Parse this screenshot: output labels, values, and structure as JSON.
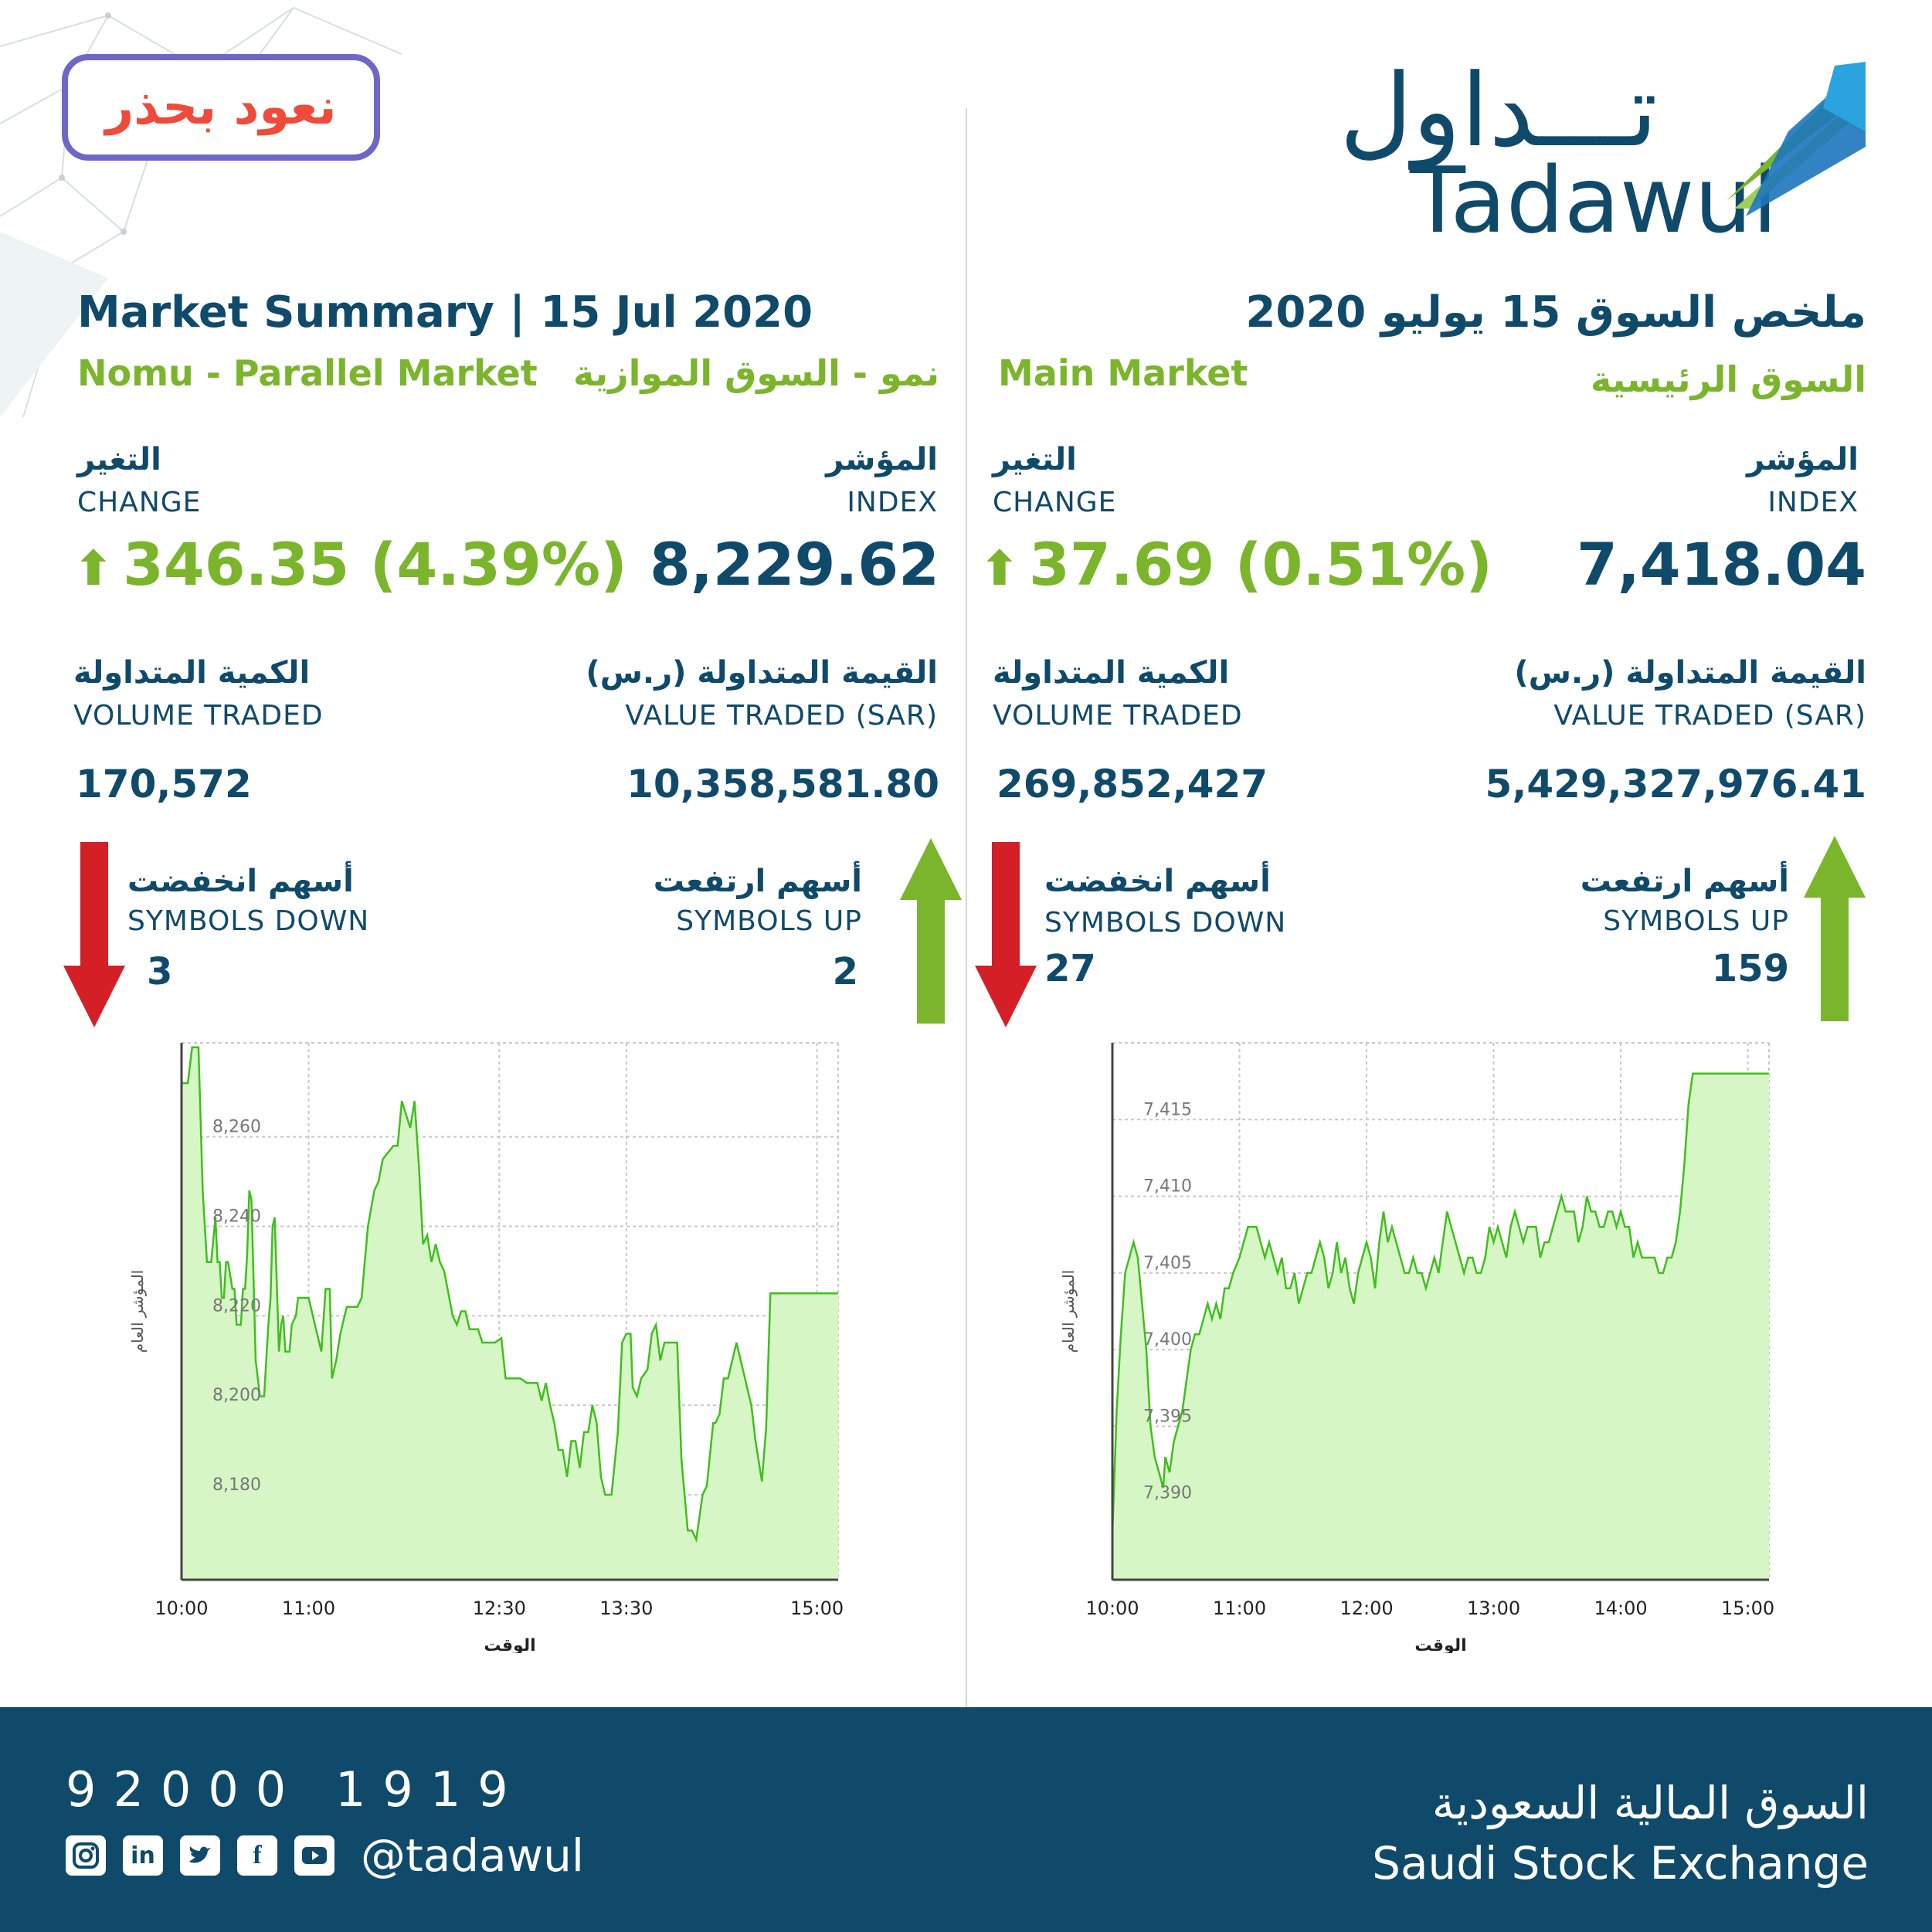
{
  "campaign": {
    "text": "نعود بحذر"
  },
  "logo": {
    "arabic": "تـــداول",
    "english": "Tadawul"
  },
  "headers": {
    "title_en": "Market Summary | 15 Jul 2020",
    "title_ar": "ملخص السوق 15 يوليو 2020"
  },
  "labels": {
    "index_ar": "المؤشر",
    "index_en": "INDEX",
    "change_ar": "التغير",
    "change_en": "CHANGE",
    "value_ar": "القيمة المتداولة (ر.س)",
    "value_en": "VALUE TRADED (SAR)",
    "volume_ar": "الكمية المتداولة",
    "volume_en": "VOLUME TRADED",
    "up_ar": "أسهم ارتفعت",
    "up_en": "SYMBOLS UP",
    "down_ar": "أسهم انخفضت",
    "down_en": "SYMBOLS DOWN"
  },
  "nomu": {
    "name_en": "Nomu - Parallel Market",
    "name_ar": "نمو - السوق الموازية",
    "index": "8,229.62",
    "change": "346.35 (4.39%)",
    "value_traded": "10,358,581.80",
    "volume_traded": "170,572",
    "symbols_up": "2",
    "symbols_down": "3"
  },
  "main": {
    "name_en": "Main Market",
    "name_ar": "السوق الرئيسية",
    "index": "7,418.04",
    "change": "37.69 (0.51%)",
    "value_traded": "5,429,327,976.41",
    "volume_traded": "269,852,427",
    "symbols_up": "159",
    "symbols_down": "27"
  },
  "footer": {
    "phone": "92000 1919",
    "handle": "@tadawul",
    "exchange_ar": "السوق المالية السعودية",
    "exchange_en": "Saudi Stock Exchange",
    "social_icons": [
      "instagram-icon",
      "linkedin-icon",
      "twitter-icon",
      "facebook-icon",
      "youtube-icon"
    ]
  },
  "colors": {
    "navy": "#0f4a6b",
    "green": "#7ab52c",
    "red": "#d41f26",
    "fill": "#d7f6c6",
    "line": "#3fbf1c"
  },
  "chart_data": [
    {
      "type": "area",
      "market": "nomu",
      "ylabel": "المؤشر العام",
      "xlabel": "الوقت",
      "x_ticks": [
        "10:00",
        "11:00",
        "12:30",
        "13:30",
        "15:00"
      ],
      "y_ticks": [
        "8,180",
        "8,200",
        "8,220",
        "8,240",
        "8,260"
      ],
      "x_range_minutes": [
        0,
        310
      ],
      "x_tick_minutes": [
        0,
        60,
        150,
        210,
        300
      ],
      "ylim": [
        8161,
        8281
      ],
      "y_tick_values": [
        8180,
        8200,
        8220,
        8240,
        8260
      ],
      "points": [
        [
          0,
          8272
        ],
        [
          3,
          8272
        ],
        [
          5,
          8280
        ],
        [
          8,
          8280
        ],
        [
          10,
          8248
        ],
        [
          12,
          8232
        ],
        [
          14,
          8232
        ],
        [
          16,
          8242
        ],
        [
          17,
          8232
        ],
        [
          18,
          8232
        ],
        [
          19,
          8224
        ],
        [
          20,
          8224
        ],
        [
          21,
          8232
        ],
        [
          22,
          8232
        ],
        [
          24,
          8226
        ],
        [
          25,
          8226
        ],
        [
          26,
          8218
        ],
        [
          28,
          8218
        ],
        [
          29,
          8226
        ],
        [
          30,
          8226
        ],
        [
          31,
          8234
        ],
        [
          32,
          8248
        ],
        [
          33,
          8246
        ],
        [
          35,
          8210
        ],
        [
          37,
          8202
        ],
        [
          38,
          8202
        ],
        [
          39,
          8202
        ],
        [
          41,
          8218
        ],
        [
          42,
          8224
        ],
        [
          43,
          8240
        ],
        [
          44,
          8242
        ],
        [
          46,
          8212
        ],
        [
          47,
          8218
        ],
        [
          48,
          8220
        ],
        [
          49,
          8212
        ],
        [
          51,
          8212
        ],
        [
          52,
          8218
        ],
        [
          54,
          8220
        ],
        [
          55,
          8224
        ],
        [
          60,
          8224
        ],
        [
          62,
          8220
        ],
        [
          64,
          8216
        ],
        [
          66,
          8212
        ],
        [
          68,
          8226
        ],
        [
          70,
          8226
        ],
        [
          71,
          8206
        ],
        [
          73,
          8210
        ],
        [
          75,
          8216
        ],
        [
          78,
          8222
        ],
        [
          83,
          8222
        ],
        [
          85,
          8224
        ],
        [
          88,
          8240
        ],
        [
          91,
          8248
        ],
        [
          93,
          8250
        ],
        [
          95,
          8255
        ],
        [
          100,
          8258
        ],
        [
          102,
          8258
        ],
        [
          104,
          8268
        ],
        [
          106,
          8265
        ],
        [
          108,
          8262
        ],
        [
          110,
          8268
        ],
        [
          112,
          8254
        ],
        [
          114,
          8236
        ],
        [
          116,
          8238
        ],
        [
          118,
          8232
        ],
        [
          120,
          8236
        ],
        [
          122,
          8232
        ],
        [
          124,
          8230
        ],
        [
          128,
          8220
        ],
        [
          130,
          8218
        ],
        [
          132,
          8221
        ],
        [
          134,
          8221
        ],
        [
          136,
          8217
        ],
        [
          140,
          8217
        ],
        [
          142,
          8214
        ],
        [
          144,
          8214
        ],
        [
          148,
          8214
        ],
        [
          151,
          8215
        ],
        [
          153,
          8206
        ],
        [
          160,
          8206
        ],
        [
          163,
          8205
        ],
        [
          168,
          8205
        ],
        [
          170,
          8201
        ],
        [
          172,
          8205
        ],
        [
          174,
          8200
        ],
        [
          176,
          8196
        ],
        [
          178,
          8190
        ],
        [
          180,
          8190
        ],
        [
          182,
          8184
        ],
        [
          184,
          8192
        ],
        [
          186,
          8192
        ],
        [
          188,
          8186
        ],
        [
          190,
          8194
        ],
        [
          192,
          8194
        ],
        [
          194,
          8200
        ],
        [
          196,
          8196
        ],
        [
          198,
          8184
        ],
        [
          200,
          8180
        ],
        [
          203,
          8180
        ],
        [
          206,
          8194
        ],
        [
          208,
          8214
        ],
        [
          210,
          8216
        ],
        [
          212,
          8216
        ],
        [
          213,
          8204
        ],
        [
          215,
          8202
        ],
        [
          217,
          8206
        ],
        [
          220,
          8208
        ],
        [
          222,
          8216
        ],
        [
          224,
          8218
        ],
        [
          226,
          8210
        ],
        [
          228,
          8214
        ],
        [
          230,
          8214
        ],
        [
          234,
          8214
        ],
        [
          236,
          8188
        ],
        [
          239,
          8172
        ],
        [
          241,
          8172
        ],
        [
          243,
          8170
        ],
        [
          246,
          8180
        ],
        [
          248,
          8182
        ],
        [
          251,
          8196
        ],
        [
          252,
          8196
        ],
        [
          254,
          8198
        ],
        [
          256,
          8206
        ],
        [
          258,
          8206
        ],
        [
          260,
          8210
        ],
        [
          262,
          8214
        ],
        [
          264,
          8210
        ],
        [
          267,
          8204
        ],
        [
          269,
          8200
        ],
        [
          271,
          8192
        ],
        [
          273,
          8186
        ],
        [
          274,
          8183
        ],
        [
          276,
          8195
        ],
        [
          278,
          8225
        ],
        [
          281,
          8225
        ],
        [
          288,
          8225
        ],
        [
          310,
          8225
        ]
      ]
    },
    {
      "type": "area",
      "market": "main",
      "ylabel": "المؤشر العام",
      "xlabel": "الوقت",
      "x_ticks": [
        "10:00",
        "11:00",
        "12:00",
        "13:00",
        "14:00",
        "15:00"
      ],
      "y_ticks": [
        "7,390",
        "7,395",
        "7,400",
        "7,405",
        "7,410",
        "7,415"
      ],
      "x_range_minutes": [
        0,
        310
      ],
      "x_tick_minutes": [
        0,
        60,
        120,
        180,
        240,
        300
      ],
      "ylim": [
        7385,
        7420
      ],
      "y_tick_values": [
        7390,
        7395,
        7400,
        7405,
        7410,
        7415
      ],
      "points": [
        [
          0,
          7388
        ],
        [
          2,
          7396
        ],
        [
          4,
          7401
        ],
        [
          6,
          7405
        ],
        [
          10,
          7407
        ],
        [
          12,
          7406
        ],
        [
          14,
          7403
        ],
        [
          16,
          7400
        ],
        [
          18,
          7395
        ],
        [
          20,
          7393
        ],
        [
          22,
          7392
        ],
        [
          24,
          7391
        ],
        [
          25,
          7393
        ],
        [
          27,
          7392
        ],
        [
          29,
          7394
        ],
        [
          31,
          7395
        ],
        [
          33,
          7396
        ],
        [
          35,
          7398
        ],
        [
          37,
          7400
        ],
        [
          39,
          7401
        ],
        [
          41,
          7401
        ],
        [
          43,
          7402
        ],
        [
          45,
          7403
        ],
        [
          47,
          7402
        ],
        [
          49,
          7403
        ],
        [
          51,
          7402
        ],
        [
          53,
          7404
        ],
        [
          55,
          7404
        ],
        [
          57,
          7405
        ],
        [
          60,
          7406
        ],
        [
          62,
          7407
        ],
        [
          64,
          7408
        ],
        [
          66,
          7408
        ],
        [
          68,
          7408
        ],
        [
          70,
          7407
        ],
        [
          72,
          7406
        ],
        [
          74,
          7407
        ],
        [
          76,
          7406
        ],
        [
          78,
          7405
        ],
        [
          80,
          7406
        ],
        [
          82,
          7404
        ],
        [
          84,
          7404
        ],
        [
          86,
          7405
        ],
        [
          88,
          7403
        ],
        [
          90,
          7404
        ],
        [
          92,
          7405
        ],
        [
          94,
          7405
        ],
        [
          96,
          7406
        ],
        [
          98,
          7407
        ],
        [
          100,
          7406
        ],
        [
          102,
          7404
        ],
        [
          104,
          7405
        ],
        [
          106,
          7407
        ],
        [
          108,
          7405
        ],
        [
          110,
          7406
        ],
        [
          112,
          7404
        ],
        [
          114,
          7403
        ],
        [
          116,
          7405
        ],
        [
          118,
          7406
        ],
        [
          120,
          7407
        ],
        [
          122,
          7406
        ],
        [
          124,
          7404
        ],
        [
          126,
          7407
        ],
        [
          128,
          7409
        ],
        [
          130,
          7407
        ],
        [
          132,
          7408
        ],
        [
          134,
          7407
        ],
        [
          136,
          7406
        ],
        [
          138,
          7405
        ],
        [
          140,
          7405
        ],
        [
          142,
          7406
        ],
        [
          144,
          7405
        ],
        [
          146,
          7405
        ],
        [
          148,
          7404
        ],
        [
          150,
          7405
        ],
        [
          152,
          7406
        ],
        [
          154,
          7405
        ],
        [
          156,
          7407
        ],
        [
          158,
          7409
        ],
        [
          160,
          7408
        ],
        [
          162,
          7407
        ],
        [
          164,
          7406
        ],
        [
          166,
          7405
        ],
        [
          168,
          7406
        ],
        [
          170,
          7406
        ],
        [
          172,
          7405
        ],
        [
          174,
          7405
        ],
        [
          176,
          7406
        ],
        [
          178,
          7408
        ],
        [
          180,
          7407
        ],
        [
          182,
          7408
        ],
        [
          184,
          7407
        ],
        [
          186,
          7406
        ],
        [
          188,
          7408
        ],
        [
          190,
          7409
        ],
        [
          192,
          7408
        ],
        [
          194,
          7407
        ],
        [
          196,
          7408
        ],
        [
          198,
          7408
        ],
        [
          200,
          7408
        ],
        [
          202,
          7406
        ],
        [
          204,
          7407
        ],
        [
          206,
          7407
        ],
        [
          208,
          7408
        ],
        [
          210,
          7409
        ],
        [
          212,
          7410
        ],
        [
          214,
          7409
        ],
        [
          216,
          7409
        ],
        [
          218,
          7409
        ],
        [
          220,
          7407
        ],
        [
          222,
          7408
        ],
        [
          224,
          7410
        ],
        [
          226,
          7409
        ],
        [
          228,
          7409
        ],
        [
          230,
          7408
        ],
        [
          232,
          7408
        ],
        [
          234,
          7409
        ],
        [
          236,
          7409
        ],
        [
          238,
          7408
        ],
        [
          240,
          7409
        ],
        [
          242,
          7408
        ],
        [
          244,
          7408
        ],
        [
          246,
          7406
        ],
        [
          248,
          7407
        ],
        [
          250,
          7406
        ],
        [
          252,
          7406
        ],
        [
          254,
          7406
        ],
        [
          256,
          7406
        ],
        [
          258,
          7405
        ],
        [
          260,
          7405
        ],
        [
          262,
          7406
        ],
        [
          264,
          7406
        ],
        [
          266,
          7407
        ],
        [
          268,
          7409
        ],
        [
          270,
          7412
        ],
        [
          272,
          7416
        ],
        [
          274,
          7418
        ],
        [
          276,
          7418
        ],
        [
          310,
          7418
        ]
      ]
    }
  ]
}
